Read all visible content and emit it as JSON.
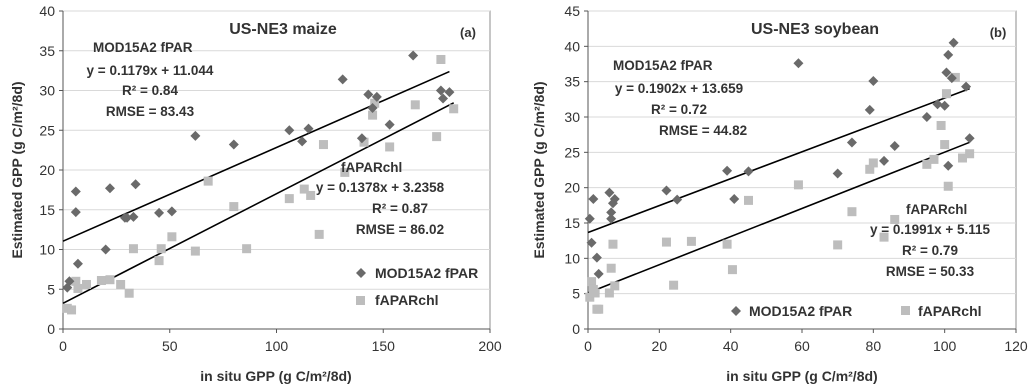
{
  "colors": {
    "mod": "#6a6a6a",
    "chl": "#bdbdbd",
    "line": "#000000",
    "grid": "#d9d9d9",
    "frame": "#8c8c8c"
  },
  "chart_data": [
    {
      "type": "scatter",
      "title": "US-NE3 maize",
      "panel_label": "(a)",
      "xlabel": "in situ GPP (g C/m²/8d)",
      "ylabel": "Estimated GPP (g C/m²/8d)",
      "xlim": [
        0,
        200
      ],
      "ylim": [
        0,
        40
      ],
      "xticks": [
        0,
        50,
        100,
        150,
        200
      ],
      "yticks": [
        0,
        5,
        10,
        15,
        20,
        25,
        30,
        35,
        40
      ],
      "grid": "horizontal",
      "legend": "bottom-right",
      "series": [
        {
          "name": "MOD15A2 fPAR",
          "marker": "diamond",
          "trendline": {
            "slope": 0.1179,
            "intercept": 11.044
          },
          "x": [
            2,
            3,
            6,
            6,
            7,
            20,
            22,
            29,
            30,
            33,
            34,
            45,
            51,
            62,
            80,
            106,
            112,
            115,
            131,
            140,
            143,
            145,
            147,
            153,
            164,
            177,
            178,
            181
          ],
          "y": [
            5.2,
            6,
            17.3,
            14.7,
            8.2,
            10,
            17.7,
            14,
            14,
            14.1,
            18.2,
            14.6,
            14.8,
            24.3,
            23.2,
            25,
            23.6,
            25.2,
            31.4,
            24,
            29.5,
            27.8,
            29.2,
            25.7,
            34.4,
            30,
            29,
            29.8
          ]
        },
        {
          "name": "fAPARchl",
          "marker": "square",
          "trendline": {
            "slope": 0.1378,
            "intercept": 3.2358
          },
          "x": [
            2,
            4,
            6,
            7,
            11,
            18,
            22,
            27,
            31,
            33,
            45,
            46,
            51,
            62,
            68,
            80,
            86,
            106,
            113,
            116,
            120,
            122,
            132,
            141,
            145,
            146,
            153,
            165,
            175,
            177,
            183
          ],
          "y": [
            2.6,
            2.4,
            6,
            5.1,
            5.6,
            6.1,
            6.2,
            5.6,
            4.5,
            10.1,
            8.6,
            10.1,
            11.6,
            9.8,
            18.6,
            15.4,
            10.1,
            16.4,
            17.6,
            16.8,
            11.9,
            23.2,
            19.7,
            23.5,
            26.9,
            28.4,
            22.9,
            28.2,
            24.2,
            33.9,
            27.7
          ]
        }
      ],
      "annotations": [
        "MOD15A2 fPAR",
        "y = 0.1179x + 11.044",
        "R² = 0.84",
        "RMSE = 83.43",
        "fAPARchl",
        "y = 0.1378x + 3.2358",
        "R² = 0.87",
        "RMSE = 86.02"
      ]
    },
    {
      "type": "scatter",
      "title": "US-NE3 soybean",
      "panel_label": "(b)",
      "xlabel": "in situ GPP (g C/m²/8d)",
      "ylabel": "Estimated GPP (g C/m²/8d)",
      "xlim": [
        0,
        120
      ],
      "ylim": [
        0,
        45
      ],
      "xticks": [
        0,
        20,
        40,
        60,
        80,
        100,
        120
      ],
      "yticks": [
        0,
        5,
        10,
        15,
        20,
        25,
        30,
        35,
        40,
        45
      ],
      "grid": "horizontal",
      "legend": "bottom",
      "series": [
        {
          "name": "MOD15A2 fPAR",
          "marker": "diamond",
          "trendline": {
            "slope": 0.1902,
            "intercept": 13.659
          },
          "x": [
            0.5,
            1,
            1.5,
            2.5,
            3,
            6,
            6.5,
            6.5,
            7,
            7.5,
            22,
            25,
            39,
            41,
            45,
            59,
            70,
            74,
            79,
            80,
            83,
            86,
            95,
            98,
            100,
            100.5,
            101,
            101,
            102,
            102.5,
            106,
            107
          ],
          "y": [
            15.6,
            12.2,
            18.4,
            10.1,
            7.8,
            19.3,
            16.5,
            15.6,
            17.8,
            18.4,
            19.6,
            18.3,
            22.4,
            18.4,
            22.3,
            37.6,
            22,
            26.4,
            31,
            35.1,
            23.8,
            25.9,
            30,
            31.8,
            31.6,
            36.3,
            38.8,
            23.1,
            35.5,
            40.5,
            34.3,
            27
          ]
        },
        {
          "name": "fAPARchl",
          "marker": "square",
          "trendline": {
            "slope": 0.1991,
            "intercept": 5.115
          },
          "x": [
            0.5,
            1,
            1.5,
            2,
            2.5,
            3,
            6,
            6.5,
            7,
            7.5,
            22,
            24,
            29,
            39,
            40.5,
            45,
            59,
            70,
            74,
            79,
            80,
            83,
            86,
            95,
            97,
            99,
            100,
            100.5,
            101,
            103,
            105,
            107
          ],
          "y": [
            4.5,
            6.7,
            5.6,
            5.1,
            2.8,
            2.8,
            5.1,
            8.6,
            12,
            6.1,
            12.3,
            6.2,
            12.4,
            12,
            8.4,
            18.2,
            20.4,
            11.9,
            16.6,
            22.6,
            23.5,
            13,
            15.5,
            23.3,
            24,
            28.8,
            26.1,
            33.3,
            20.2,
            35.6,
            24.2,
            24.8
          ]
        }
      ],
      "annotations": [
        "MOD15A2 fPAR",
        "y = 0.1902x + 13.659",
        "R² = 0.72",
        "RMSE = 44.82",
        "fAPARchl",
        "y = 0.1991x + 5.115",
        "R² = 0.79",
        "RMSE = 50.33"
      ]
    }
  ]
}
